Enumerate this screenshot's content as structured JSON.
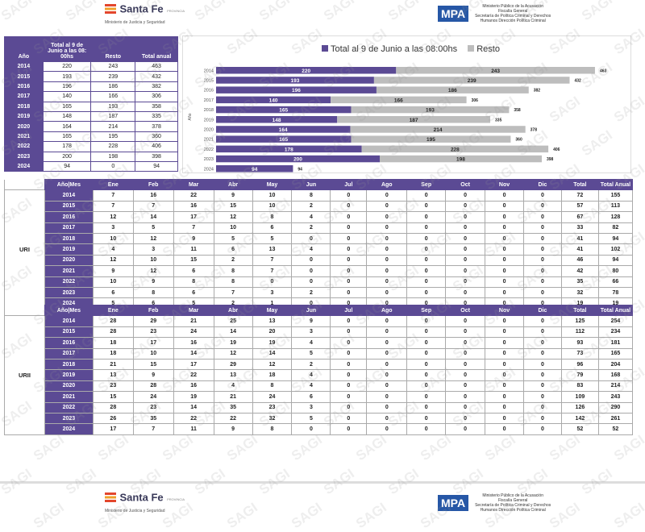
{
  "header": {
    "santafe_name": "Santa Fe",
    "santafe_sub": "PROVINCIA",
    "santafe_ministry": "Ministerio de Justicia y Seguridad",
    "mpa_logo": "MPA",
    "mpa_lines": [
      "Ministerio Público de la Acusación",
      "Fiscalía General",
      "Secretaría de Política Criminal y Derechos",
      "Humanos Dirección Política Criminal"
    ]
  },
  "watermark": "SAGI",
  "summary_table": {
    "headers": [
      "Año",
      "Total al 9 de Junio a las 08: 00hs",
      "Resto",
      "Total anual"
    ],
    "rows": [
      [
        "2014",
        "220",
        "243",
        "463"
      ],
      [
        "2015",
        "193",
        "239",
        "432"
      ],
      [
        "2016",
        "196",
        "186",
        "382"
      ],
      [
        "2017",
        "140",
        "166",
        "306"
      ],
      [
        "2018",
        "165",
        "193",
        "358"
      ],
      [
        "2019",
        "148",
        "187",
        "335"
      ],
      [
        "2020",
        "164",
        "214",
        "378"
      ],
      [
        "2021",
        "165",
        "195",
        "360"
      ],
      [
        "2022",
        "178",
        "228",
        "406"
      ],
      [
        "2023",
        "200",
        "198",
        "398"
      ],
      [
        "2024",
        "94",
        "0",
        "94"
      ]
    ]
  },
  "chart_data": {
    "type": "bar",
    "orientation": "horizontal",
    "stacked": true,
    "ylabel": "Año",
    "categories": [
      "2014",
      "2015",
      "2016",
      "2017",
      "2018",
      "2019",
      "2020",
      "2021",
      "2022",
      "2023",
      "2024"
    ],
    "series": [
      {
        "name": "Total al 9 de Junio a las 08:00hs",
        "color": "#5b4a94",
        "values": [
          220,
          193,
          196,
          140,
          165,
          148,
          164,
          165,
          178,
          200,
          94
        ]
      },
      {
        "name": "Resto",
        "color": "#bdbdbd",
        "values": [
          243,
          239,
          186,
          166,
          193,
          187,
          214,
          195,
          228,
          198,
          0
        ]
      }
    ],
    "totals": [
      463,
      432,
      382,
      306,
      358,
      335,
      378,
      360,
      406,
      398,
      94
    ],
    "legend": "top"
  },
  "months_header": [
    "Año|Mes",
    "Ene",
    "Feb",
    "Mar",
    "Abr",
    "May",
    "Jun",
    "Jul",
    "Ago",
    "Sep",
    "Oct",
    "Nov",
    "Dic",
    "Total",
    "Total Anual"
  ],
  "tables": [
    {
      "label": "URI",
      "rows": [
        [
          "2014",
          "7",
          "16",
          "22",
          "9",
          "10",
          "8",
          "0",
          "0",
          "0",
          "0",
          "0",
          "0",
          "72",
          "155"
        ],
        [
          "2015",
          "7",
          "7",
          "16",
          "15",
          "10",
          "2",
          "0",
          "0",
          "0",
          "0",
          "0",
          "0",
          "57",
          "113"
        ],
        [
          "2016",
          "12",
          "14",
          "17",
          "12",
          "8",
          "4",
          "0",
          "0",
          "0",
          "0",
          "0",
          "0",
          "67",
          "128"
        ],
        [
          "2017",
          "3",
          "5",
          "7",
          "10",
          "6",
          "2",
          "0",
          "0",
          "0",
          "0",
          "0",
          "0",
          "33",
          "82"
        ],
        [
          "2018",
          "10",
          "12",
          "9",
          "5",
          "5",
          "0",
          "0",
          "0",
          "0",
          "0",
          "0",
          "0",
          "41",
          "94"
        ],
        [
          "2019",
          "4",
          "3",
          "11",
          "6",
          "13",
          "4",
          "0",
          "0",
          "0",
          "0",
          "0",
          "0",
          "41",
          "102"
        ],
        [
          "2020",
          "12",
          "10",
          "15",
          "2",
          "7",
          "0",
          "0",
          "0",
          "0",
          "0",
          "0",
          "0",
          "46",
          "94"
        ],
        [
          "2021",
          "9",
          "12",
          "6",
          "8",
          "7",
          "0",
          "0",
          "0",
          "0",
          "0",
          "0",
          "0",
          "42",
          "80"
        ],
        [
          "2022",
          "10",
          "9",
          "8",
          "8",
          "0",
          "0",
          "0",
          "0",
          "0",
          "0",
          "0",
          "0",
          "35",
          "66"
        ],
        [
          "2023",
          "6",
          "8",
          "6",
          "7",
          "3",
          "2",
          "0",
          "0",
          "0",
          "0",
          "0",
          "0",
          "32",
          "78"
        ],
        [
          "2024",
          "5",
          "6",
          "5",
          "2",
          "1",
          "0",
          "0",
          "0",
          "0",
          "0",
          "0",
          "0",
          "19",
          "19"
        ]
      ]
    },
    {
      "label": "URII",
      "rows": [
        [
          "2014",
          "28",
          "29",
          "21",
          "25",
          "13",
          "9",
          "0",
          "0",
          "0",
          "0",
          "0",
          "0",
          "125",
          "254"
        ],
        [
          "2015",
          "28",
          "23",
          "24",
          "14",
          "20",
          "3",
          "0",
          "0",
          "0",
          "0",
          "0",
          "0",
          "112",
          "234"
        ],
        [
          "2016",
          "18",
          "17",
          "16",
          "19",
          "19",
          "4",
          "0",
          "0",
          "0",
          "0",
          "0",
          "0",
          "93",
          "181"
        ],
        [
          "2017",
          "18",
          "10",
          "14",
          "12",
          "14",
          "5",
          "0",
          "0",
          "0",
          "0",
          "0",
          "0",
          "73",
          "165"
        ],
        [
          "2018",
          "21",
          "15",
          "17",
          "29",
          "12",
          "2",
          "0",
          "0",
          "0",
          "0",
          "0",
          "0",
          "96",
          "204"
        ],
        [
          "2019",
          "13",
          "9",
          "22",
          "13",
          "18",
          "4",
          "0",
          "0",
          "0",
          "0",
          "0",
          "0",
          "79",
          "168"
        ],
        [
          "2020",
          "23",
          "28",
          "16",
          "4",
          "8",
          "4",
          "0",
          "0",
          "0",
          "0",
          "0",
          "0",
          "83",
          "214"
        ],
        [
          "2021",
          "15",
          "24",
          "19",
          "21",
          "24",
          "6",
          "0",
          "0",
          "0",
          "0",
          "0",
          "0",
          "109",
          "243"
        ],
        [
          "2022",
          "28",
          "23",
          "14",
          "35",
          "23",
          "3",
          "0",
          "0",
          "0",
          "0",
          "0",
          "0",
          "126",
          "290"
        ],
        [
          "2023",
          "26",
          "35",
          "22",
          "22",
          "32",
          "5",
          "0",
          "0",
          "0",
          "0",
          "0",
          "0",
          "142",
          "261"
        ],
        [
          "2024",
          "17",
          "7",
          "11",
          "9",
          "8",
          "0",
          "0",
          "0",
          "0",
          "0",
          "0",
          "0",
          "52",
          "52"
        ]
      ]
    }
  ]
}
